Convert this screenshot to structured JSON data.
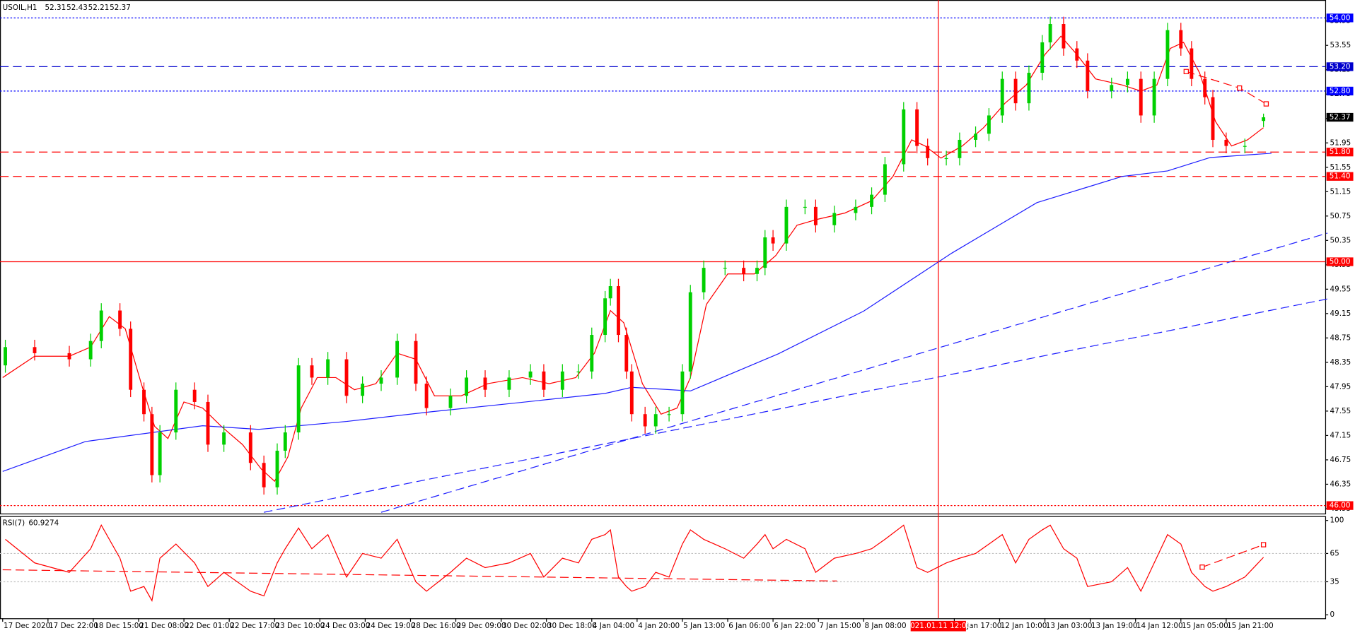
{
  "chart_data": [
    {
      "type": "candlestick",
      "symbol": "USOIL,H1",
      "x": [
        1,
        12,
        25,
        33,
        37,
        44,
        48,
        53,
        56,
        59,
        65,
        72,
        77,
        83,
        93,
        98,
        103,
        106,
        111,
        116,
        122,
        129,
        135,
        142,
        148,
        155,
        159,
        168,
        174,
        181,
        190,
        198,
        203,
        210,
        216,
        221,
        226,
        228,
        231,
        234,
        236,
        241,
        245,
        250,
        255,
        258,
        263,
        271,
        278,
        283,
        286,
        289,
        294,
        301,
        305,
        312,
        320,
        326,
        331,
        338,
        343,
        347,
        354,
        359,
        365,
        370,
        375,
        380,
        385,
        390,
        393,
        398,
        403,
        407,
        416,
        422,
        427,
        432,
        437,
        442,
        446,
        451,
        454,
        459,
        466,
        473
      ],
      "open": [
        48.3,
        48.6,
        48.5,
        48.4,
        48.7,
        49.2,
        48.9,
        47.9,
        47.5,
        46.5,
        47.2,
        47.9,
        47.7,
        47.0,
        47.2,
        46.7,
        46.3,
        46.9,
        47.2,
        48.3,
        48.1,
        48.4,
        47.8,
        48.0,
        48.1,
        48.7,
        48.0,
        47.6,
        47.8,
        48.1,
        47.9,
        48.1,
        48.2,
        47.9,
        48.2,
        48.2,
        48.8,
        49.4,
        49.6,
        48.8,
        48.2,
        47.5,
        47.3,
        47.5,
        47.5,
        48.2,
        49.5,
        49.9,
        49.9,
        49.8,
        49.9,
        50.4,
        50.3,
        50.9,
        50.9,
        50.6,
        50.8,
        50.9,
        51.1,
        51.6,
        52.5,
        51.9,
        51.7,
        51.7,
        52.0,
        52.1,
        52.4,
        53.0,
        52.6,
        53.1,
        53.6,
        53.9,
        53.5,
        53.3,
        52.8,
        52.9,
        53.0,
        52.4,
        53.0,
        53.8,
        53.5,
        53.0,
        52.7,
        52.0,
        51.9,
        52.31
      ],
      "high": [
        48.72,
        48.72,
        48.62,
        48.82,
        49.32,
        49.32,
        49.02,
        48.02,
        47.62,
        47.32,
        48.02,
        48.02,
        47.82,
        47.32,
        47.32,
        46.82,
        47.02,
        47.32,
        48.42,
        48.42,
        48.52,
        48.52,
        48.12,
        48.22,
        48.82,
        48.82,
        48.12,
        47.92,
        48.22,
        48.22,
        48.22,
        48.32,
        48.32,
        48.32,
        48.32,
        48.92,
        49.52,
        49.72,
        49.72,
        48.92,
        48.32,
        47.62,
        47.62,
        47.62,
        48.32,
        49.62,
        50.02,
        50.02,
        50.02,
        50.02,
        50.52,
        50.52,
        51.02,
        51.02,
        51.02,
        50.92,
        51.02,
        51.22,
        51.72,
        52.62,
        52.62,
        52.02,
        51.82,
        52.12,
        52.22,
        52.52,
        53.12,
        53.12,
        53.22,
        53.72,
        54.02,
        54.02,
        53.62,
        53.42,
        53.02,
        53.12,
        53.12,
        53.12,
        53.92,
        53.92,
        53.62,
        53.12,
        52.82,
        52.12,
        52.02,
        52.43
      ],
      "low": [
        48.18,
        48.38,
        48.28,
        48.28,
        48.58,
        48.78,
        47.78,
        47.38,
        46.38,
        46.38,
        47.08,
        47.58,
        46.88,
        46.88,
        46.58,
        46.18,
        46.18,
        46.78,
        47.08,
        47.98,
        47.98,
        47.68,
        47.68,
        47.88,
        47.98,
        47.88,
        47.48,
        47.48,
        47.68,
        47.78,
        47.78,
        47.98,
        47.78,
        47.78,
        48.08,
        48.08,
        48.68,
        49.28,
        48.68,
        48.08,
        47.38,
        47.18,
        47.18,
        47.38,
        47.38,
        48.08,
        49.38,
        49.78,
        49.68,
        49.68,
        49.78,
        50.18,
        50.18,
        50.78,
        50.48,
        50.48,
        50.68,
        50.78,
        50.98,
        51.48,
        51.78,
        51.58,
        51.58,
        51.58,
        51.88,
        51.98,
        52.28,
        52.48,
        52.48,
        52.98,
        53.48,
        53.38,
        53.18,
        52.68,
        52.68,
        52.78,
        52.28,
        52.28,
        52.88,
        53.38,
        52.88,
        52.58,
        51.88,
        51.78,
        51.78,
        52.21
      ],
      "close": [
        48.6,
        48.5,
        48.4,
        48.7,
        49.2,
        48.9,
        47.9,
        47.5,
        46.5,
        47.2,
        47.9,
        47.7,
        47.0,
        47.2,
        46.7,
        46.3,
        46.9,
        47.2,
        48.3,
        48.1,
        48.4,
        47.8,
        48.0,
        48.1,
        48.7,
        48.0,
        47.6,
        47.8,
        48.1,
        47.9,
        48.1,
        48.2,
        47.9,
        48.2,
        48.2,
        48.8,
        49.4,
        49.6,
        48.8,
        48.2,
        47.5,
        47.3,
        47.5,
        47.5,
        48.2,
        49.5,
        49.9,
        49.9,
        49.8,
        49.9,
        50.4,
        50.3,
        50.9,
        50.9,
        50.6,
        50.8,
        50.9,
        51.1,
        51.6,
        52.5,
        51.9,
        51.7,
        51.7,
        52.0,
        52.1,
        52.4,
        53.0,
        52.6,
        53.1,
        53.6,
        53.9,
        53.5,
        53.3,
        52.8,
        52.9,
        53.0,
        52.4,
        53.0,
        53.8,
        53.5,
        53.0,
        52.7,
        52.0,
        51.9,
        51.9,
        52.37
      ],
      "up_color": "#00d000",
      "down_color": "#ff0000",
      "xlim": [
        -1,
        496.3
      ],
      "ylim": [
        45.87,
        54.28
      ],
      "xticks": [
        {
          "value": 0,
          "label": "17 Dec 2020"
        },
        {
          "value": 17,
          "label": "17 Dec 22:00"
        },
        {
          "value": 34,
          "label": "18 Dec 15:00"
        },
        {
          "value": 51,
          "label": "21 Dec 08:00"
        },
        {
          "value": 68,
          "label": "22 Dec 01:00"
        },
        {
          "value": 85,
          "label": "22 Dec 17:00"
        },
        {
          "value": 102,
          "label": "23 Dec 10:00"
        },
        {
          "value": 119,
          "label": "24 Dec 03:00"
        },
        {
          "value": 136,
          "label": "24 Dec 19:00"
        },
        {
          "value": 153,
          "label": "28 Dec 16:00"
        },
        {
          "value": 170,
          "label": "29 Dec 09:00"
        },
        {
          "value": 187,
          "label": "30 Dec 02:00"
        },
        {
          "value": 204,
          "label": "30 Dec 18:00"
        },
        {
          "value": 221,
          "label": "4 Jan 04:00"
        },
        {
          "value": 238,
          "label": "4 Jan 20:00"
        },
        {
          "value": 255,
          "label": "5 Jan 13:00"
        },
        {
          "value": 272,
          "label": "6 Jan 06:00"
        },
        {
          "value": 289,
          "label": "6 Jan 22:00"
        },
        {
          "value": 306,
          "label": "7 Jan 15:00"
        },
        {
          "value": 323,
          "label": "8 Jan 08:00"
        },
        {
          "value": 357,
          "label": "11 Jan 17:00"
        },
        {
          "value": 374,
          "label": "12 Jan 10:00"
        },
        {
          "value": 391,
          "label": "13 Jan 03:00"
        },
        {
          "value": 408,
          "label": "13 Jan 19:00"
        },
        {
          "value": 425,
          "label": "14 Jan 12:00"
        },
        {
          "value": 442,
          "label": "15 Jan 05:00"
        },
        {
          "value": 459,
          "label": "15 Jan 21:00"
        }
      ],
      "yticks": [
        53.95,
        53.55,
        53.15,
        52.75,
        52.35,
        51.95,
        51.55,
        51.15,
        50.75,
        50.35,
        49.95,
        49.55,
        49.15,
        48.75,
        48.35,
        47.95,
        47.55,
        47.15,
        46.75,
        46.35,
        45.95
      ],
      "levels": [
        {
          "value": 54,
          "label": "54.00",
          "color": "#0000ff",
          "style": "dotted"
        },
        {
          "value": 53.2,
          "label": "53.20",
          "color": "#0000cd",
          "style": "dashed"
        },
        {
          "value": 52.8,
          "label": "52.80",
          "color": "#0000ff",
          "style": "dotted"
        },
        {
          "value": 51.8,
          "label": "51.80",
          "color": "#ff0000",
          "style": "dashed"
        },
        {
          "value": 51.4,
          "label": "51.40",
          "color": "#ff0000",
          "style": "dashed"
        },
        {
          "value": 50,
          "label": "50.00",
          "color": "#ff0000",
          "style": "solid"
        },
        {
          "value": 46,
          "label": "46.00",
          "color": "#ff0000",
          "style": "dotted"
        }
      ],
      "overlays": [
        {
          "color": "#ff0000",
          "x": [
            0,
            12,
            25,
            33,
            40,
            46,
            52,
            57,
            62,
            68,
            75,
            82,
            90,
            97,
            102,
            107,
            112,
            118,
            125,
            132,
            140,
            148,
            155,
            162,
            172,
            182,
            195,
            205,
            215,
            222,
            228,
            233,
            240,
            247,
            253,
            258,
            264,
            272,
            282,
            290,
            298,
            306,
            316,
            326,
            334,
            341,
            346,
            352,
            360,
            368,
            376,
            384,
            391,
            397,
            403,
            410,
            420,
            427,
            433,
            438,
            443,
            449,
            455,
            461,
            467,
            473
          ],
          "values": [
            48.1,
            48.45,
            48.45,
            48.6,
            49.1,
            48.9,
            48.0,
            47.3,
            47.1,
            47.7,
            47.6,
            47.3,
            47.0,
            46.6,
            46.4,
            46.8,
            47.6,
            48.1,
            48.1,
            47.9,
            48.0,
            48.5,
            48.4,
            47.8,
            47.8,
            48.0,
            48.1,
            48.0,
            48.1,
            48.5,
            49.2,
            49.0,
            48.0,
            47.5,
            47.6,
            48.1,
            49.3,
            49.8,
            49.8,
            50.1,
            50.6,
            50.7,
            50.8,
            51.0,
            51.4,
            52.0,
            51.9,
            51.7,
            51.9,
            52.2,
            52.6,
            52.9,
            53.4,
            53.7,
            53.4,
            53.0,
            52.9,
            52.8,
            52.9,
            53.5,
            53.6,
            53.1,
            52.3,
            51.9,
            52.0,
            52.2
          ]
        },
        {
          "color": "#1e1eff",
          "x": [
            0,
            31,
            75,
            96,
            129,
            161,
            194,
            226,
            236,
            258,
            291,
            323,
            356,
            388,
            420,
            437,
            453,
            476
          ],
          "values": [
            46.56,
            47.05,
            47.31,
            47.25,
            47.38,
            47.54,
            47.69,
            47.84,
            47.94,
            47.88,
            48.49,
            49.19,
            50.14,
            50.97,
            51.4,
            51.49,
            51.71,
            51.78
          ]
        }
      ],
      "trendlines": [
        {
          "x": [
            98,
            497
          ],
          "values": [
            45.89,
            49.39
          ],
          "color": "#1e1eff",
          "style": "dashed"
        },
        {
          "x": [
            142,
            497
          ],
          "values": [
            45.89,
            50.47
          ],
          "color": "#1e1eff",
          "style": "dashed"
        },
        {
          "x": [
            444,
            464,
            474
          ],
          "values": [
            53.12,
            52.85,
            52.59
          ],
          "color": "#ff0000",
          "style": "dashed",
          "markers": true
        }
      ],
      "crosshair": {
        "value": 351,
        "label": "2021.01.11 12:00",
        "color": "#ff0000"
      },
      "price_label": true
    },
    {
      "type": "line",
      "title": "RSI(7)",
      "x": [
        1,
        12,
        25,
        33,
        37,
        44,
        48,
        53,
        56,
        59,
        65,
        72,
        77,
        83,
        93,
        98,
        103,
        106,
        111,
        116,
        122,
        129,
        135,
        142,
        148,
        155,
        159,
        168,
        174,
        181,
        190,
        198,
        203,
        210,
        216,
        221,
        226,
        228,
        231,
        234,
        236,
        241,
        245,
        250,
        255,
        258,
        263,
        271,
        278,
        283,
        286,
        289,
        294,
        301,
        305,
        312,
        320,
        326,
        331,
        338,
        343,
        347,
        354,
        359,
        365,
        370,
        375,
        380,
        385,
        390,
        393,
        398,
        403,
        407,
        416,
        422,
        427,
        432,
        437,
        442,
        446,
        451,
        454,
        459,
        466,
        473
      ],
      "values": [
        80,
        55,
        45,
        70,
        95,
        60,
        25,
        30,
        15,
        60,
        75,
        55,
        30,
        45,
        25,
        20,
        55,
        70,
        92,
        70,
        85,
        40,
        65,
        60,
        80,
        35,
        25,
        45,
        60,
        50,
        55,
        65,
        40,
        60,
        55,
        80,
        85,
        90,
        40,
        30,
        25,
        30,
        45,
        40,
        75,
        90,
        80,
        70,
        60,
        75,
        85,
        70,
        80,
        70,
        45,
        60,
        65,
        70,
        80,
        95,
        50,
        45,
        55,
        60,
        65,
        75,
        85,
        55,
        80,
        90,
        95,
        70,
        60,
        30,
        35,
        50,
        25,
        55,
        85,
        75,
        45,
        30,
        25,
        30,
        40,
        60.9274
      ],
      "color": "#ff0000",
      "xlim": [
        -1,
        496.3
      ],
      "ylim": [
        -3.7,
        103.7
      ],
      "yticks": [
        100,
        65,
        35,
        0
      ],
      "levels": [
        {
          "value": 65,
          "color": "#c0c0c0",
          "style": "dotted"
        },
        {
          "value": 35,
          "color": "#c0c0c0",
          "style": "dotted"
        }
      ],
      "trendlines": [
        {
          "x": [
            0,
            313
          ],
          "values": [
            47.7,
            35.8
          ],
          "color": "#ff0000",
          "style": "dashed"
        },
        {
          "x": [
            450,
            473
          ],
          "values": [
            50.5,
            74.3
          ],
          "color": "#ff0000",
          "style": "dashed",
          "markers": true
        }
      ]
    }
  ]
}
